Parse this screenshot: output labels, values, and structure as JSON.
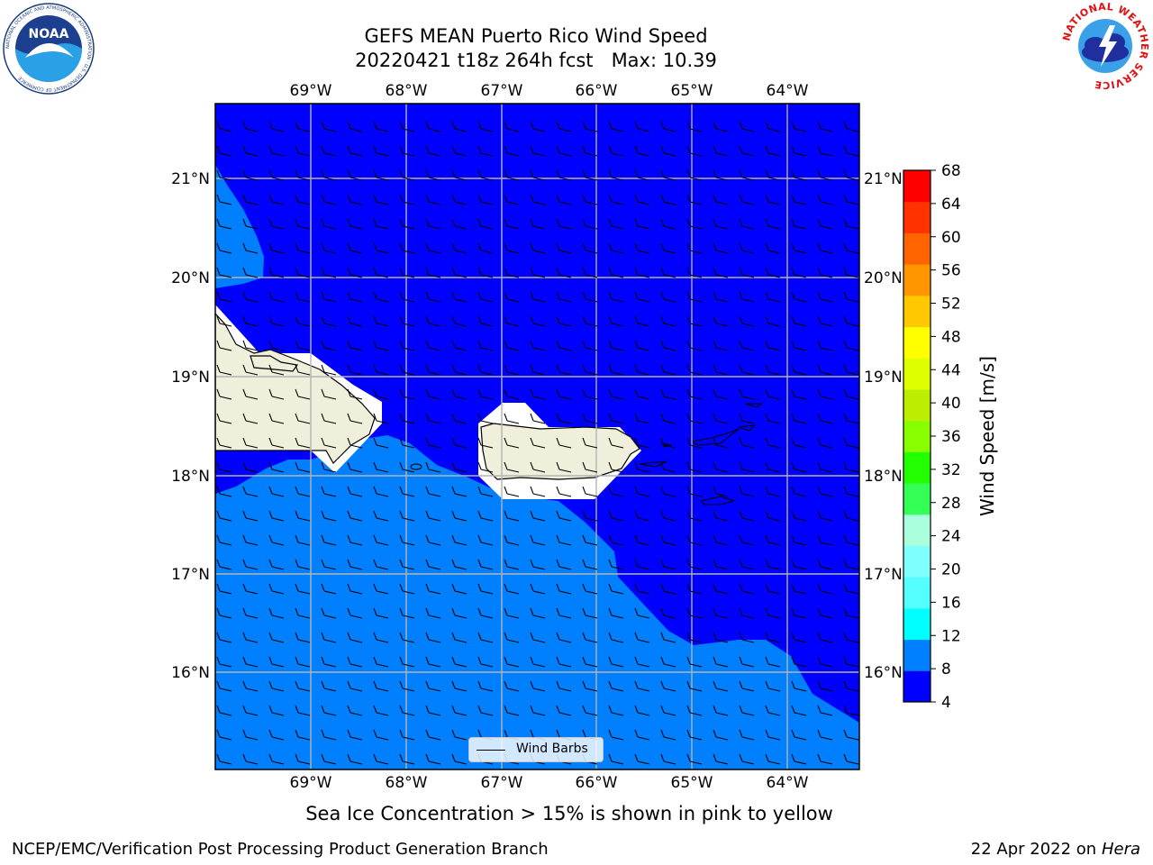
{
  "title": {
    "line1": "GEFS MEAN Puerto Rico Wind Speed",
    "line2": "20220421 t18z 264h fcst   Max: 10.39"
  },
  "map": {
    "lon_labels": [
      "69°W",
      "68°W",
      "67°W",
      "66°W",
      "65°W",
      "64°W"
    ],
    "lat_labels": [
      "21°N",
      "20°N",
      "19°N",
      "18°N",
      "17°N",
      "16°N"
    ],
    "legend_label": "Wind Barbs",
    "fill_colors": {
      "low": "#0000ff",
      "mid": "#0080ff",
      "land": "#efefdb"
    }
  },
  "colorbar": {
    "label": "Wind Speed [m/s]",
    "ticks": [
      "4",
      "8",
      "12",
      "16",
      "20",
      "24",
      "28",
      "32",
      "36",
      "40",
      "44",
      "48",
      "52",
      "56",
      "60",
      "64",
      "68"
    ],
    "colors": [
      "#0000ff",
      "#0080ff",
      "#00ffff",
      "#55ffff",
      "#80ffff",
      "#aaffdd",
      "#33ff55",
      "#22ff00",
      "#88ff00",
      "#bbee00",
      "#ddff00",
      "#ffff00",
      "#ffc800",
      "#ff9600",
      "#ff6400",
      "#ff3200",
      "#ff0000"
    ]
  },
  "subtitle": "Sea Ice Concentration > 15% is shown in pink to yellow",
  "footer": {
    "left": "NCEP/EMC/Verification Post Processing Product Generation Branch",
    "right_prefix": "22 Apr 2022 on ",
    "right_host": "Hera"
  },
  "logos": {
    "noaa_text": "NOAA",
    "noaa_ring": "NATIONAL OCEANIC AND ATMOSPHERIC ADMINISTRATION · U.S. DEPARTMENT OF COMMERCE",
    "nws_ring": "NATIONAL WEATHER SERVICE"
  }
}
